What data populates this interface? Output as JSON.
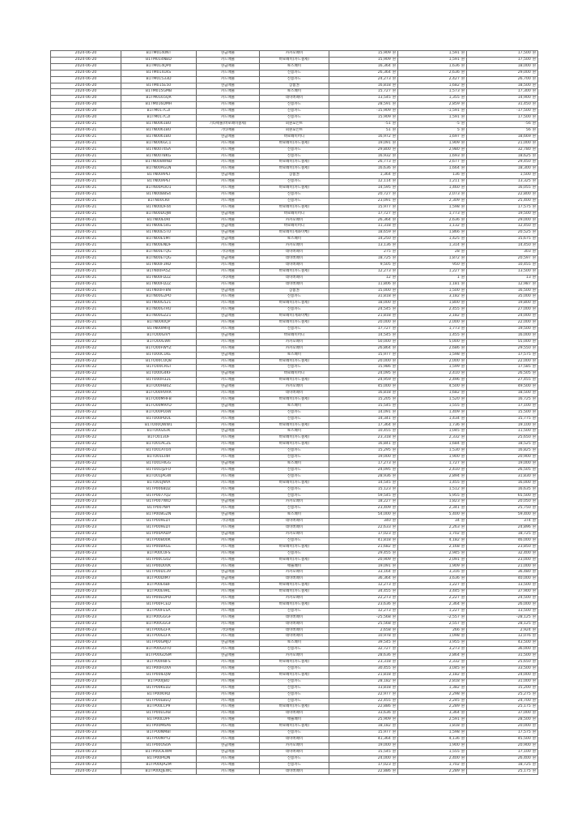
{
  "currency_suffix": "원",
  "rows": [
    [
      "2024-06-20",
      "B1TM0140NT",
      "현금매출",
      "카카오페이",
      "15,909",
      "1,591",
      "17,500"
    ],
    [
      "2024-06-20",
      "B1TM014NBD",
      "카드매출",
      "바로페이(카드결제)",
      "15,909",
      "1,591",
      "17,500"
    ],
    [
      "2024-06-20",
      "B1TM014QP0",
      "현금매출",
      "토스페이",
      "16,364",
      "1,636",
      "18,000"
    ],
    [
      "2024-06-20",
      "B1TM0141KS",
      "카드매출",
      "신용카드",
      "26,364",
      "2,636",
      "29,000"
    ],
    [
      "2024-06-20",
      "B1TM01533D",
      "카드매출",
      "신용카드",
      "24,273",
      "2,427",
      "26,700"
    ],
    [
      "2024-06-20",
      "B1TM015E50",
      "현금매출",
      "상품권",
      "16,818",
      "1,682",
      "18,500"
    ],
    [
      "2024-06-20",
      "B1TM015GMB",
      "카드매출",
      "토스페이",
      "15,727",
      "1,573",
      "17,300"
    ],
    [
      "2024-06-20",
      "B1TM0165QR",
      "카드매출",
      "네이버페이",
      "13,545",
      "1,355",
      "14,900"
    ],
    [
      "2024-06-20",
      "B1TM016DMH",
      "카드매출",
      "신용카드",
      "28,591",
      "2,859",
      "31,450"
    ],
    [
      "2024-06-20",
      "B1TM017C2I",
      "카드매출",
      "신용카드",
      "-15,909",
      "-1,591",
      "-17,500"
    ],
    [
      "2024-06-20",
      "B1TM017C2I",
      "카드매출",
      "신용카드",
      "15,909",
      "1,591",
      "17,500"
    ],
    [
      "2024-06-21",
      "B1TN0061BU",
      "기타매출(바로페이결제)",
      "회원포인트",
      "-51",
      "-5",
      "-56"
    ],
    [
      "2024-06-21",
      "B1TN0061BU",
      "기타매출",
      "회원포인트",
      "51",
      "5",
      "56"
    ],
    [
      "2024-06-21",
      "B1TN0061BU",
      "현금매출",
      "바로페이머니",
      "16,972",
      "1,697",
      "18,669"
    ],
    [
      "2024-06-21",
      "B1TN006GC1",
      "카드매출",
      "바로페이(카드결제)",
      "19,091",
      "1,909",
      "21,000"
    ],
    [
      "2024-06-21",
      "B1TN0074SA",
      "카드매출",
      "신용카드",
      "29,800",
      "2,980",
      "32,780"
    ],
    [
      "2024-06-21",
      "B1TN0078KG",
      "카드매출",
      "신용카드",
      "16,932",
      "1,693",
      "18,625"
    ],
    [
      "2024-06-21",
      "B1TN008WND",
      "카드매출",
      "바로페이(카드결제)",
      "26,773",
      "2,677",
      "29,450"
    ],
    [
      "2024-06-21",
      "B1TN00AGLN",
      "카드매출",
      "바로페이(카드결제)",
      "16,636",
      "1,664",
      "18,300"
    ],
    [
      "2024-06-21",
      "B1TN00APEI",
      "현금매출",
      "상품권",
      "1,364",
      "136",
      "1,500"
    ],
    [
      "2024-06-21",
      "B1TN00APEI",
      "카드매출",
      "신용카드",
      "12,114",
      "1,211",
      "13,325"
    ],
    [
      "2024-06-21",
      "B1TN00AUO1",
      "카드매출",
      "바로페이(카드결제)",
      "14,595",
      "1,460",
      "16,055"
    ],
    [
      "2024-06-21",
      "B1TN00B8S4",
      "카드매출",
      "신용카드",
      "20,727",
      "2,073",
      "22,800"
    ],
    [
      "2024-06-21",
      "B1TN00CKII",
      "카드매출",
      "신용카드",
      "23,091",
      "2,309",
      "25,400"
    ],
    [
      "2024-06-21",
      "B1TN00DF44",
      "카드매출",
      "바로페이(카드결제)",
      "15,977",
      "1,598",
      "17,575"
    ],
    [
      "2024-06-21",
      "B1TN00DUJW",
      "현금매출",
      "바로페이머니",
      "17,727",
      "1,773",
      "19,500"
    ],
    [
      "2024-06-21",
      "B1TN00E0RI",
      "카드매출",
      "카카오페이",
      "26,364",
      "2,636",
      "29,000"
    ],
    [
      "2024-06-21",
      "B1TN00E54G",
      "현금매출",
      "바로페이머니",
      "11,318",
      "1,132",
      "12,450"
    ],
    [
      "2024-06-21",
      "B1TN00E5TU",
      "현금매출",
      "바로페이(계좌이체)",
      "18,659",
      "1,866",
      "20,525"
    ],
    [
      "2024-06-21",
      "B1TN00E5MT",
      "현금매출",
      "토스페이",
      "14,250",
      "1,425",
      "15,675"
    ],
    [
      "2024-06-21",
      "B1TN00ENDF",
      "카드매출",
      "카카오페이",
      "13,136",
      "1,314",
      "14,450"
    ],
    [
      "2024-06-21",
      "B1TN00ETQG",
      "기타매출",
      "네이버페이",
      "275",
      "28",
      "303"
    ],
    [
      "2024-06-21",
      "B1TN00ETQG",
      "현금매출",
      "네이버페이",
      "18,725",
      "1,872",
      "20,597"
    ],
    [
      "2024-06-21",
      "B1TN00F39D",
      "카드매출",
      "네이버페이",
      "9,505",
      "950",
      "10,455"
    ],
    [
      "2024-06-21",
      "B1TN00FA5Z",
      "카드매출",
      "바로페이(카드결제)",
      "12,273",
      "1,227",
      "13,500"
    ],
    [
      "2024-06-21",
      "B1TN00FD2Z",
      "기타매출",
      "네이버페이",
      "12",
      "1",
      "13"
    ],
    [
      "2024-06-21",
      "B1TN00FD2Z",
      "카드매출",
      "네이버페이",
      "11,806",
      "1,181",
      "12,987"
    ],
    [
      "2024-06-21",
      "B1TN00FF8N",
      "현금매출",
      "상품권",
      "15,000",
      "1,500",
      "16,500"
    ],
    [
      "2024-06-21",
      "B1TN00G2PO",
      "카드매출",
      "신용카드",
      "31,818",
      "3,182",
      "35,000"
    ],
    [
      "2024-06-21",
      "B1TN00G521",
      "카드매출",
      "바로페이(카드결제)",
      "18,000",
      "1,800",
      "19,800"
    ],
    [
      "2024-06-21",
      "B1TN00GTRU",
      "카드매출",
      "신용카드",
      "24,545",
      "2,455",
      "27,000"
    ],
    [
      "2024-06-21",
      "B1TN00GZZ1",
      "현금매출",
      "바로페이(계좌이체)",
      "21,818",
      "2,182",
      "24,000"
    ],
    [
      "2024-06-21",
      "B1TN00I0QP",
      "카드매출",
      "바로페이(카드결제)",
      "20,000",
      "2,000",
      "22,000"
    ],
    [
      "2024-06-21",
      "B1TN00IMHJ",
      "카드매출",
      "신용카드",
      "17,727",
      "1,773",
      "19,500"
    ],
    [
      "2024-06-22",
      "B1TO00GIVY",
      "현금매출",
      "바로페이머니",
      "14,545",
      "1,455",
      "16,000"
    ],
    [
      "2024-06-22",
      "B1TO00GWII",
      "카드매출",
      "카카오페이",
      "50,000",
      "5,000",
      "55,000"
    ],
    [
      "2024-06-22",
      "B1TO00FWYZ",
      "카드매출",
      "카카오페이",
      "26,864",
      "2,686",
      "29,550"
    ],
    [
      "2024-06-22",
      "B1TO00C1KE",
      "현금매출",
      "토스페이",
      "15,977",
      "1,598",
      "17,575"
    ],
    [
      "2024-06-22",
      "B1TO00COQ8",
      "카드매출",
      "바로페이(카드결제)",
      "20,000",
      "2,000",
      "22,000"
    ],
    [
      "2024-06-22",
      "B1TO00CRGI",
      "카드매출",
      "신용카드",
      "15,986",
      "1,599",
      "17,585"
    ],
    [
      "2024-06-22",
      "B1TO00G4KF",
      "현금매출",
      "바로페이머니",
      "24,095",
      "2,410",
      "26,505"
    ],
    [
      "2024-06-22",
      "B1TO00H32L",
      "카드매출",
      "바로페이(카드결제)",
      "24,959",
      "2,496",
      "27,455"
    ],
    [
      "2024-06-22",
      "B1TO00HB0Z",
      "현금매출",
      "카카오페이",
      "45,000",
      "4,500",
      "49,500"
    ],
    [
      "2024-06-22",
      "B1TO00HVRR",
      "카드매출",
      "네이버페이",
      "16,818",
      "1,682",
      "18,500"
    ],
    [
      "2024-06-22",
      "B1TO00MHFB",
      "카드매출",
      "바로페이(카드결제)",
      "15,205",
      "1,520",
      "16,725"
    ],
    [
      "2024-06-22",
      "B1TO00MRYD",
      "현금매출",
      "토스페이",
      "15,545",
      "1,555",
      "17,100"
    ],
    [
      "2024-06-22",
      "B1TO00PL6W",
      "카드매출",
      "신용카드",
      "14,091",
      "1,409",
      "15,500"
    ],
    [
      "2024-06-22",
      "B1TO00PDUL",
      "카드매출",
      "신용카드",
      "14,341",
      "1,434",
      "15,775"
    ],
    [
      "2024-06-22",
      "B1TO00QWW1",
      "카드매출",
      "바로페이(카드결제)",
      "17,364",
      "1,736",
      "19,100"
    ],
    [
      "2024-06-22",
      "B1TO00ZEIK",
      "현금매출",
      "토스페이",
      "10,455",
      "1,045",
      "11,500"
    ],
    [
      "2024-06-22",
      "B1TO013UF",
      "카드매출",
      "바로페이(카드결제)",
      "23,318",
      "2,332",
      "25,650"
    ],
    [
      "2024-06-22",
      "B1TO01ACZE",
      "카드매출",
      "바로페이(카드결제)",
      "16,841",
      "1,684",
      "18,525"
    ],
    [
      "2024-06-22",
      "B1TO01ATO4",
      "카드매출",
      "신용카드",
      "15,295",
      "1,530",
      "16,825"
    ],
    [
      "2024-06-22",
      "B1TO01EI4R",
      "카드매출",
      "신용카드",
      "19,000",
      "1,900",
      "20,900"
    ],
    [
      "2024-06-22",
      "B1TO01HIGG",
      "현금매출",
      "토스페이",
      "17,273",
      "1,727",
      "19,000"
    ],
    [
      "2024-06-22",
      "B1TO01IJ2FO",
      "카드매출",
      "신용카드",
      "24,095",
      "2,410",
      "26,505"
    ],
    [
      "2024-06-22",
      "B1TO01JAGW",
      "카드매출",
      "신용카드",
      "28,936",
      "2,894",
      "31,830"
    ],
    [
      "2024-06-22",
      "B1TO01JNYA",
      "카드매출",
      "바로페이(카드결제)",
      "14,545",
      "1,455",
      "16,000"
    ],
    [
      "2024-06-23",
      "B1TP0068DZ",
      "카드매출",
      "신용카드",
      "15,123",
      "1,512",
      "16,635"
    ],
    [
      "2024-06-23",
      "B1TP0077Q2",
      "카드매출",
      "신용카드",
      "59,545",
      "5,955",
      "65,500"
    ],
    [
      "2024-06-23",
      "B1TP007IWD",
      "현금매출",
      "카카오페이",
      "18,227",
      "1,823",
      "20,050"
    ],
    [
      "2024-06-23",
      "B1TP007NPI",
      "카드매출",
      "신용카드",
      "23,409",
      "2,341",
      "25,750"
    ],
    [
      "2024-06-23",
      "B1TP008GZN",
      "현금매출",
      "토스페이",
      "54,000",
      "5,400",
      "59,400"
    ],
    [
      "2024-06-23",
      "B1TP009EDT",
      "기타매출",
      "네이버페이",
      "340",
      "34",
      "374"
    ],
    [
      "2024-06-23",
      "B1TP009EDT",
      "카드매출",
      "네이버페이",
      "22,633",
      "2,263",
      "24,896"
    ],
    [
      "2024-06-23",
      "B1TP00AADP",
      "현금매출",
      "카카오페이",
      "17,023",
      "1,702",
      "18,725"
    ],
    [
      "2024-06-23",
      "B1TP00B00K",
      "카드매출",
      "신용카드",
      "41,818",
      "4,182",
      "46,000"
    ],
    [
      "2024-06-23",
      "B1TP00BRGE",
      "카드매출",
      "바로페이(카드결제)",
      "21,682",
      "2,168",
      "23,850"
    ],
    [
      "2024-06-23",
      "B1TP00C0FS",
      "카드매출",
      "신용카드",
      "29,455",
      "2,945",
      "32,400"
    ],
    [
      "2024-06-23",
      "B1TP00CG02",
      "카드매출",
      "바로페이(카드결제)",
      "20,909",
      "2,091",
      "23,000"
    ],
    [
      "2024-06-23",
      "B1TP00D0VK",
      "카드매출",
      "애플페이",
      "19,091",
      "1,909",
      "21,000"
    ],
    [
      "2024-06-23",
      "B1TP00D139",
      "현금매출",
      "카카오페이",
      "33,164",
      "3,316",
      "36,480"
    ],
    [
      "2024-06-23",
      "B1TP00DIM7",
      "현금매출",
      "네이버페이",
      "36,364",
      "3,636",
      "40,000"
    ],
    [
      "2024-06-23",
      "B1TP00E6BF",
      "카드매출",
      "바로페이(카드결제)",
      "12,273",
      "1,227",
      "13,500"
    ],
    [
      "2024-06-23",
      "B1TP00E9RL",
      "카드매출",
      "바로페이(카드결제)",
      "34,455",
      "3,445",
      "37,900"
    ],
    [
      "2024-06-23",
      "B1TP00EDPD",
      "카드매출",
      "카카오페이",
      "22,273",
      "2,227",
      "24,500"
    ],
    [
      "2024-06-23",
      "B1TP00FCED",
      "카드매출",
      "바로페이(카드결제)",
      "23,636",
      "2,364",
      "26,000"
    ],
    [
      "2024-06-23",
      "B1TP00FESA",
      "카드매출",
      "신용카드",
      "12,273",
      "1,227",
      "13,500"
    ],
    [
      "2024-06-23",
      "B1TP00GGGF",
      "카드매출",
      "네이버페이",
      "-25,568",
      "-2,557",
      "-28,125"
    ],
    [
      "2024-06-23",
      "B1TP00GGGF",
      "카드매출",
      "네이버페이",
      "25,568",
      "2,557",
      "28,125"
    ],
    [
      "2024-06-23",
      "B1TP00GLFR",
      "기타매출",
      "네이버페이",
      "2,658",
      "266",
      "2,924"
    ],
    [
      "2024-06-23",
      "B1TP00GLFR",
      "카드매출",
      "네이버페이",
      "10,978",
      "1,098",
      "12,076"
    ],
    [
      "2024-06-23",
      "B1TP00GMJU",
      "현금매출",
      "토스페이",
      "39,545",
      "3,955",
      "43,500"
    ],
    [
      "2024-06-23",
      "B1TP00GOTO",
      "카드매출",
      "신용카드",
      "32,727",
      "3,273",
      "36,000"
    ],
    [
      "2024-06-23",
      "B1TP00GDSM",
      "현금매출",
      "카카오페이",
      "28,636",
      "2,864",
      "31,500"
    ],
    [
      "2024-06-23",
      "B1TP00H8FS",
      "카드매출",
      "바로페이(카드결제)",
      "23,318",
      "2,332",
      "25,650"
    ],
    [
      "2024-06-23",
      "B1TP00HUXA",
      "카드매출",
      "신용카드",
      "30,455",
      "3,045",
      "33,500"
    ],
    [
      "2024-06-23",
      "B1TP00IEQW",
      "카드매출",
      "바로페이(카드결제)",
      "21,818",
      "2,182",
      "24,000"
    ],
    [
      "2024-06-23",
      "B1TP00IJBO",
      "카드매출",
      "신용카드",
      "28,182",
      "2,818",
      "31,000"
    ],
    [
      "2024-06-23",
      "B1TP00KED2",
      "카드매출",
      "신용카드",
      "13,818",
      "1,382",
      "15,200"
    ],
    [
      "2024-06-23",
      "B1TP00KIRD",
      "카드매출",
      "신용카드",
      "22,977",
      "2,298",
      "25,275"
    ],
    [
      "2024-06-23",
      "B1TP00LBEQ",
      "카드매출",
      "신용카드",
      "22,455",
      "2,245",
      "24,700"
    ],
    [
      "2024-06-23",
      "B1TP00LCP9",
      "카드매출",
      "바로페이(카드결제)",
      "22,886",
      "2,289",
      "25,175"
    ],
    [
      "2024-06-23",
      "B1TP00LGXB",
      "카드매출",
      "네이버페이",
      "33,636",
      "3,364",
      "37,000"
    ],
    [
      "2024-06-23",
      "B1TP00LUPF",
      "카드매출",
      "애플페이",
      "25,909",
      "2,591",
      "28,500"
    ],
    [
      "2024-06-23",
      "B1TP00M6A6",
      "카드매출",
      "바로페이(카드결제)",
      "18,182",
      "1,818",
      "20,000"
    ],
    [
      "2024-06-23",
      "B1TP00NMBI",
      "카드매출",
      "신용카드",
      "15,977",
      "1,598",
      "17,575"
    ],
    [
      "2024-06-23",
      "B1TP00NYY2",
      "카드매출",
      "네이버페이",
      "41,364",
      "4,136",
      "45,500"
    ],
    [
      "2024-06-23",
      "B1TP00OS0A",
      "현금매출",
      "카카오페이",
      "19,000",
      "1,900",
      "20,900"
    ],
    [
      "2024-06-23",
      "B1TP00OEWM",
      "현금매출",
      "네이버페이",
      "15,545",
      "1,555",
      "17,100"
    ],
    [
      "2024-06-23",
      "B1TP00PIDN",
      "카드매출",
      "신용카드",
      "24,000",
      "2,400",
      "26,400"
    ],
    [
      "2024-06-23",
      "B1TP00QAZM",
      "카드매출",
      "신용카드",
      "17,023",
      "1,702",
      "18,725"
    ],
    [
      "2024-06-23",
      "B1TP00QJEWC",
      "카드매출",
      "네이버페이",
      "22,886",
      "2,289",
      "25,175"
    ]
  ]
}
